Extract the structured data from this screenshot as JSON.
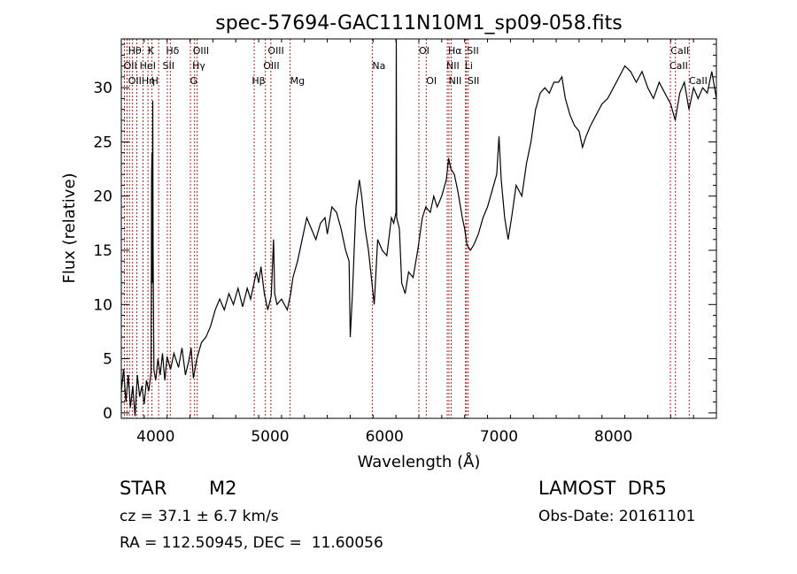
{
  "chart_data": {
    "type": "line",
    "title": "spec-57694-GAC111N10M1_sp09-058.fits",
    "xlabel": "Wavelength (Å)",
    "ylabel": "Flux (relative)",
    "xlim": [
      3700,
      8900
    ],
    "ylim": [
      -0.5,
      34.5
    ],
    "xticks": [
      4000,
      5000,
      6000,
      7000,
      8000
    ],
    "yticks": [
      0,
      5,
      10,
      15,
      20,
      25,
      30
    ],
    "grid": false,
    "series": [
      {
        "points": [
          [
            3700,
            2.0
          ],
          [
            3720,
            4.0
          ],
          [
            3740,
            1.0
          ],
          [
            3760,
            3.5
          ],
          [
            3780,
            0.5
          ],
          [
            3800,
            2.5
          ],
          [
            3820,
            -0.3
          ],
          [
            3840,
            3.5
          ],
          [
            3860,
            1.5
          ],
          [
            3880,
            2.5
          ],
          [
            3900,
            0.8
          ],
          [
            3920,
            3.0
          ],
          [
            3940,
            2.0
          ],
          [
            3960,
            3.8
          ],
          [
            3965,
            22.0
          ],
          [
            3968,
            24.0
          ],
          [
            3970,
            12.0
          ],
          [
            3975,
            28.8
          ],
          [
            3978,
            15.0
          ],
          [
            3985,
            4.0
          ],
          [
            4000,
            3.0
          ],
          [
            4020,
            5.0
          ],
          [
            4040,
            3.5
          ],
          [
            4060,
            5.5
          ],
          [
            4080,
            3.0
          ],
          [
            4100,
            5.2
          ],
          [
            4130,
            4.0
          ],
          [
            4160,
            5.5
          ],
          [
            4200,
            4.2
          ],
          [
            4230,
            6.0
          ],
          [
            4260,
            3.5
          ],
          [
            4290,
            4.8
          ],
          [
            4310,
            6.0
          ],
          [
            4330,
            3.2
          ],
          [
            4360,
            5.0
          ],
          [
            4400,
            6.5
          ],
          [
            4440,
            7.0
          ],
          [
            4480,
            8.0
          ],
          [
            4520,
            9.5
          ],
          [
            4560,
            10.5
          ],
          [
            4600,
            9.5
          ],
          [
            4640,
            11.0
          ],
          [
            4680,
            10.0
          ],
          [
            4720,
            11.5
          ],
          [
            4760,
            9.8
          ],
          [
            4800,
            11.5
          ],
          [
            4830,
            10.5
          ],
          [
            4860,
            12.0
          ],
          [
            4880,
            13.0
          ],
          [
            4900,
            12.0
          ],
          [
            4920,
            13.5
          ],
          [
            4950,
            11.0
          ],
          [
            4980,
            9.5
          ],
          [
            5010,
            10.8
          ],
          [
            5030,
            16.0
          ],
          [
            5040,
            11.0
          ],
          [
            5060,
            10.0
          ],
          [
            5100,
            10.5
          ],
          [
            5150,
            9.5
          ],
          [
            5180,
            11.0
          ],
          [
            5200,
            12.5
          ],
          [
            5240,
            14.0
          ],
          [
            5280,
            16.0
          ],
          [
            5320,
            18.0
          ],
          [
            5360,
            17.0
          ],
          [
            5400,
            16.0
          ],
          [
            5440,
            17.5
          ],
          [
            5480,
            18.0
          ],
          [
            5500,
            16.5
          ],
          [
            5540,
            19.0
          ],
          [
            5580,
            18.5
          ],
          [
            5620,
            17.0
          ],
          [
            5660,
            15.0
          ],
          [
            5690,
            14.0
          ],
          [
            5700,
            7.0
          ],
          [
            5720,
            11.0
          ],
          [
            5750,
            19.0
          ],
          [
            5780,
            21.5
          ],
          [
            5800,
            20.0
          ],
          [
            5830,
            17.0
          ],
          [
            5860,
            15.0
          ],
          [
            5890,
            12.0
          ],
          [
            5910,
            10.0
          ],
          [
            5940,
            16.0
          ],
          [
            5980,
            15.0
          ],
          [
            6020,
            14.5
          ],
          [
            6060,
            18.0
          ],
          [
            6080,
            17.5
          ],
          [
            6100,
            18.5
          ],
          [
            6103,
            35.0
          ],
          [
            6106,
            18.0
          ],
          [
            6130,
            17.0
          ],
          [
            6150,
            12.0
          ],
          [
            6180,
            11.0
          ],
          [
            6210,
            13.0
          ],
          [
            6250,
            12.5
          ],
          [
            6290,
            15.0
          ],
          [
            6330,
            18.0
          ],
          [
            6360,
            19.0
          ],
          [
            6400,
            18.5
          ],
          [
            6430,
            20.0
          ],
          [
            6460,
            19.0
          ],
          [
            6500,
            20.0
          ],
          [
            6540,
            21.5
          ],
          [
            6560,
            23.5
          ],
          [
            6580,
            22.5
          ],
          [
            6610,
            22.0
          ],
          [
            6640,
            20.5
          ],
          [
            6680,
            18.0
          ],
          [
            6700,
            17.0
          ],
          [
            6720,
            15.5
          ],
          [
            6750,
            15.0
          ],
          [
            6780,
            15.5
          ],
          [
            6820,
            16.5
          ],
          [
            6860,
            18.0
          ],
          [
            6900,
            19.0
          ],
          [
            6940,
            20.5
          ],
          [
            6980,
            22.0
          ],
          [
            7000,
            25.5
          ],
          [
            7020,
            21.5
          ],
          [
            7050,
            18.0
          ],
          [
            7080,
            16.0
          ],
          [
            7110,
            18.0
          ],
          [
            7150,
            21.0
          ],
          [
            7200,
            20.0
          ],
          [
            7240,
            23.0
          ],
          [
            7280,
            25.0
          ],
          [
            7320,
            28.0
          ],
          [
            7360,
            29.5
          ],
          [
            7400,
            30.0
          ],
          [
            7440,
            29.5
          ],
          [
            7480,
            30.5
          ],
          [
            7520,
            30.5
          ],
          [
            7550,
            31.0
          ],
          [
            7580,
            29.0
          ],
          [
            7620,
            27.5
          ],
          [
            7660,
            26.5
          ],
          [
            7700,
            26.0
          ],
          [
            7730,
            24.5
          ],
          [
            7760,
            25.5
          ],
          [
            7800,
            26.5
          ],
          [
            7850,
            27.5
          ],
          [
            7900,
            28.5
          ],
          [
            7950,
            29.0
          ],
          [
            8000,
            30.0
          ],
          [
            8050,
            31.0
          ],
          [
            8100,
            32.0
          ],
          [
            8150,
            31.5
          ],
          [
            8200,
            30.5
          ],
          [
            8250,
            31.5
          ],
          [
            8300,
            30.0
          ],
          [
            8350,
            29.0
          ],
          [
            8400,
            30.5
          ],
          [
            8450,
            29.5
          ],
          [
            8500,
            28.5
          ],
          [
            8540,
            27.0
          ],
          [
            8580,
            29.5
          ],
          [
            8620,
            30.5
          ],
          [
            8660,
            28.0
          ],
          [
            8700,
            30.0
          ],
          [
            8740,
            29.0
          ],
          [
            8780,
            30.0
          ],
          [
            8820,
            29.5
          ],
          [
            8860,
            31.5
          ],
          [
            8900,
            29.0
          ]
        ]
      }
    ],
    "lines": [
      {
        "wavelength": 3727,
        "labels": [
          "OII"
        ]
      },
      {
        "wavelength": 3750,
        "labels": [
          ""
        ]
      },
      {
        "wavelength": 3771,
        "labels": [
          ""
        ]
      },
      {
        "wavelength": 3798,
        "labels": [
          ""
        ]
      },
      {
        "wavelength": 3835,
        "labels": [
          ""
        ]
      },
      {
        "wavelength": 3889,
        "labels": [
          "Hθ"
        ]
      },
      {
        "wavelength": 3933,
        "labels": [
          "K"
        ]
      },
      {
        "wavelength": 3968,
        "labels": [
          "H"
        ]
      },
      {
        "wavelength": 4026,
        "labels": [
          "HeI"
        ]
      },
      {
        "wavelength": 4102,
        "labels": [
          "Hδ"
        ]
      },
      {
        "wavelength": 4128,
        "labels": [
          "SII"
        ]
      },
      {
        "wavelength": 4304,
        "labels": [
          "G"
        ]
      },
      {
        "wavelength": 4340,
        "labels": [
          "Hγ"
        ]
      },
      {
        "wavelength": 4363,
        "labels": [
          "OIII"
        ]
      },
      {
        "wavelength": 4861,
        "labels": [
          "Hβ"
        ]
      },
      {
        "wavelength": 4959,
        "labels": [
          "OIII"
        ]
      },
      {
        "wavelength": 5007,
        "labels": [
          "OIII"
        ]
      },
      {
        "wavelength": 5175,
        "labels": [
          "Mg"
        ]
      },
      {
        "wavelength": 5893,
        "labels": [
          "Na"
        ]
      },
      {
        "wavelength": 6300,
        "labels": [
          "OI"
        ]
      },
      {
        "wavelength": 6364,
        "labels": [
          "OI"
        ]
      },
      {
        "wavelength": 6548,
        "labels": [
          "NII"
        ]
      },
      {
        "wavelength": 6563,
        "labels": [
          "Hα"
        ]
      },
      {
        "wavelength": 6583,
        "labels": [
          "NII"
        ]
      },
      {
        "wavelength": 6708,
        "labels": [
          "Li"
        ]
      },
      {
        "wavelength": 6716,
        "labels": [
          "SII"
        ]
      },
      {
        "wavelength": 6731,
        "labels": [
          "SII"
        ]
      },
      {
        "wavelength": 8498,
        "labels": [
          "CaII"
        ]
      },
      {
        "wavelength": 8542,
        "labels": [
          "CaII"
        ]
      },
      {
        "wavelength": 8662,
        "labels": [
          "CaII"
        ]
      }
    ],
    "annotations": [
      {
        "text": "Hθ",
        "wl": 3760,
        "row": 0
      },
      {
        "text": "K",
        "wl": 3930,
        "row": 0
      },
      {
        "text": "Hδ",
        "wl": 4090,
        "row": 0
      },
      {
        "text": "OIII",
        "wl": 4325,
        "row": 0
      },
      {
        "text": "OIII",
        "wl": 4980,
        "row": 0
      },
      {
        "text": "OI",
        "wl": 6300,
        "row": 0
      },
      {
        "text": "Hα",
        "wl": 6555,
        "row": 0
      },
      {
        "text": "SII",
        "wl": 6720,
        "row": 0
      },
      {
        "text": "CaII",
        "wl": 8500,
        "row": 0
      },
      {
        "text": "OII",
        "wl": 3720,
        "row": 1
      },
      {
        "text": "HeI",
        "wl": 3860,
        "row": 1
      },
      {
        "text": "SII",
        "wl": 4060,
        "row": 1
      },
      {
        "text": "Hγ",
        "wl": 4320,
        "row": 1
      },
      {
        "text": "OIII",
        "wl": 4940,
        "row": 1
      },
      {
        "text": "Na",
        "wl": 5893,
        "row": 1
      },
      {
        "text": "NII",
        "wl": 6540,
        "row": 1
      },
      {
        "text": "Li",
        "wl": 6700,
        "row": 1
      },
      {
        "text": "CaII",
        "wl": 8490,
        "row": 1
      },
      {
        "text": "OIIHη",
        "wl": 3760,
        "row": 2
      },
      {
        "text": "H",
        "wl": 3960,
        "row": 2
      },
      {
        "text": "G",
        "wl": 4300,
        "row": 2
      },
      {
        "text": "Hβ",
        "wl": 4840,
        "row": 2
      },
      {
        "text": "Mg",
        "wl": 5175,
        "row": 2
      },
      {
        "text": "OI",
        "wl": 6364,
        "row": 2
      },
      {
        "text": "NII",
        "wl": 6560,
        "row": 2
      },
      {
        "text": "SII",
        "wl": 6725,
        "row": 2
      },
      {
        "text": "CaII",
        "wl": 8660,
        "row": 2
      }
    ]
  },
  "info": {
    "class": "STAR",
    "subclass": "M2",
    "survey": "LAMOST  DR5",
    "cz": "cz = 37.1 ± 6.7 km/s",
    "obs_date": "Obs-Date: 20161101",
    "radec": "RA = 112.50945, DEC =  11.60056"
  },
  "colors": {
    "spectrum": "#000000",
    "line_markers": "#b22222",
    "axes": "#000000",
    "background": "#ffffff"
  }
}
